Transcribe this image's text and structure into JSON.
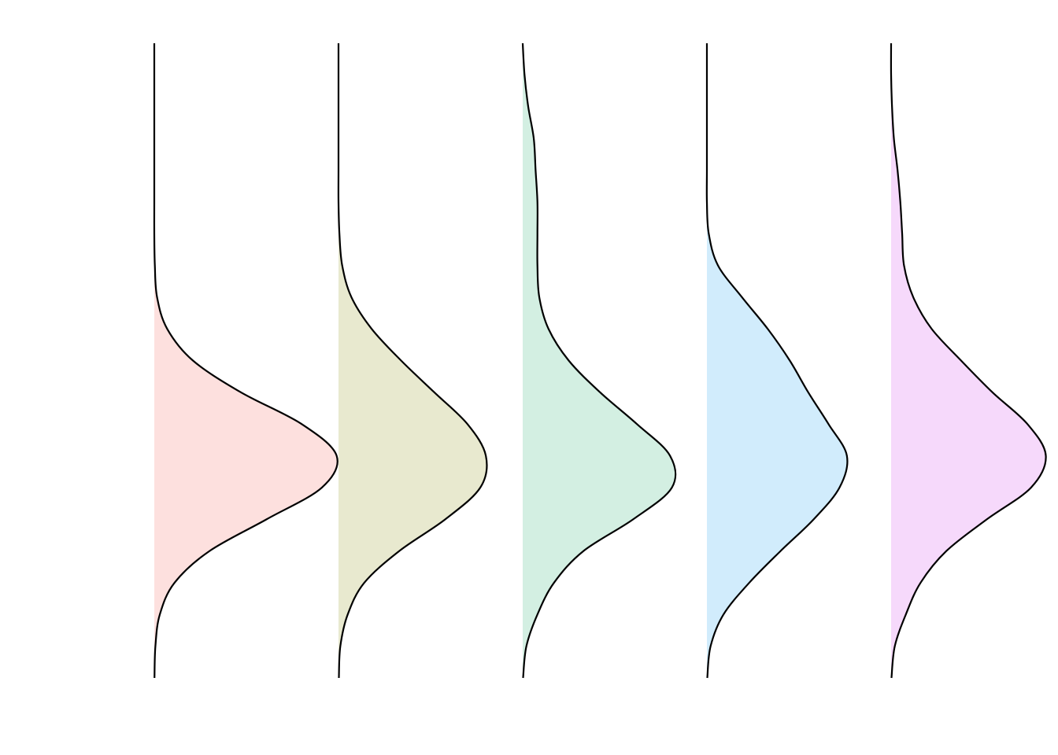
{
  "chart_data": {
    "type": "density",
    "y": [
      0,
      5,
      10,
      15,
      20,
      25,
      30,
      35,
      40,
      45,
      50,
      55,
      60,
      65,
      70,
      75,
      80,
      85,
      90,
      95,
      100
    ],
    "ylim": [
      0,
      100
    ],
    "xlim": [
      0,
      1
    ],
    "series": [
      {
        "color": "#fde0de",
        "values": [
          0.001,
          0.006,
          0.03,
          0.11,
          0.3,
          0.61,
          0.91,
          0.99,
          0.8,
          0.47,
          0.21,
          0.07,
          0.015,
          0.003,
          0,
          0,
          0,
          0,
          0,
          0,
          0
        ]
      },
      {
        "color": "#e8e9cf",
        "values": [
          0.002,
          0.01,
          0.05,
          0.14,
          0.33,
          0.58,
          0.77,
          0.8,
          0.7,
          0.52,
          0.34,
          0.18,
          0.07,
          0.02,
          0.005,
          0,
          0,
          0,
          0,
          0,
          0
        ]
      },
      {
        "color": "#d3efe2",
        "values": [
          0.002,
          0.02,
          0.08,
          0.17,
          0.33,
          0.6,
          0.81,
          0.8,
          0.62,
          0.42,
          0.25,
          0.14,
          0.09,
          0.08,
          0.08,
          0.08,
          0.07,
          0.06,
          0.03,
          0.01,
          0
        ]
      },
      {
        "color": "#d1ecfc",
        "values": [
          0.002,
          0.02,
          0.09,
          0.23,
          0.4,
          0.58,
          0.72,
          0.76,
          0.66,
          0.55,
          0.45,
          0.33,
          0.19,
          0.06,
          0.01,
          0,
          0,
          0,
          0,
          0,
          0
        ]
      },
      {
        "color": "#f6d9fb",
        "values": [
          0.002,
          0.02,
          0.08,
          0.16,
          0.3,
          0.52,
          0.76,
          0.84,
          0.74,
          0.55,
          0.38,
          0.22,
          0.12,
          0.07,
          0.06,
          0.05,
          0.035,
          0.015,
          0.005,
          0,
          0
        ]
      }
    ]
  }
}
